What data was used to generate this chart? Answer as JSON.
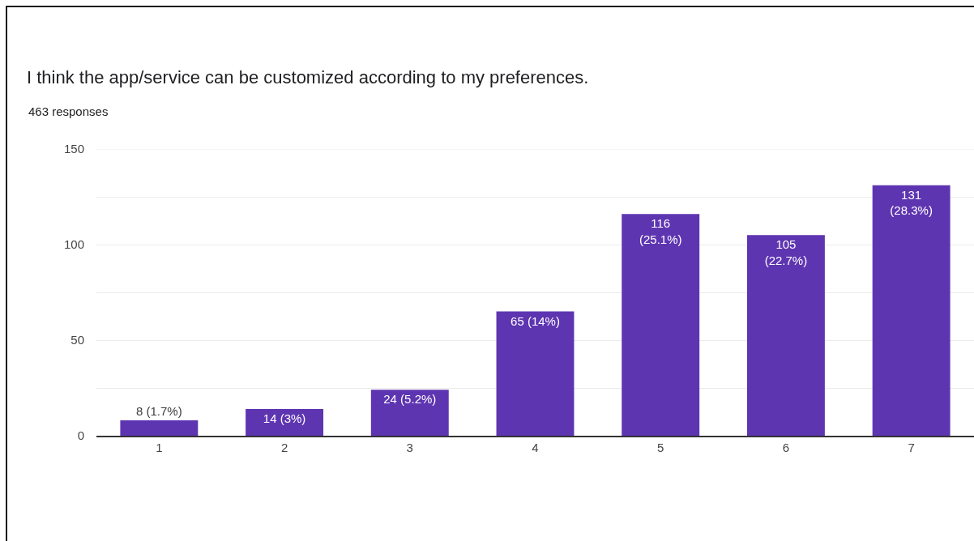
{
  "chart_data": {
    "type": "bar",
    "title": "I think the app/service can be customized according to my preferences.",
    "subtitle": "463 responses",
    "categories": [
      "1",
      "2",
      "3",
      "4",
      "5",
      "6",
      "7"
    ],
    "values": [
      8,
      14,
      24,
      65,
      116,
      105,
      131
    ],
    "value_labels": [
      "8 (1.7%)",
      "14 (3%)",
      "24 (5.2%)",
      "65 (14%)",
      "116 (25.1%)",
      "105 (22.7%)",
      "131 (28.3%)"
    ],
    "color": "#5e35b1",
    "ylim": [
      0,
      150
    ],
    "yticks": [
      0,
      {
        "value": 25,
        "label": null
      },
      50,
      {
        "value": 75,
        "label": null
      },
      100,
      {
        "value": 125,
        "label": null
      },
      150
    ],
    "grid": "y"
  }
}
